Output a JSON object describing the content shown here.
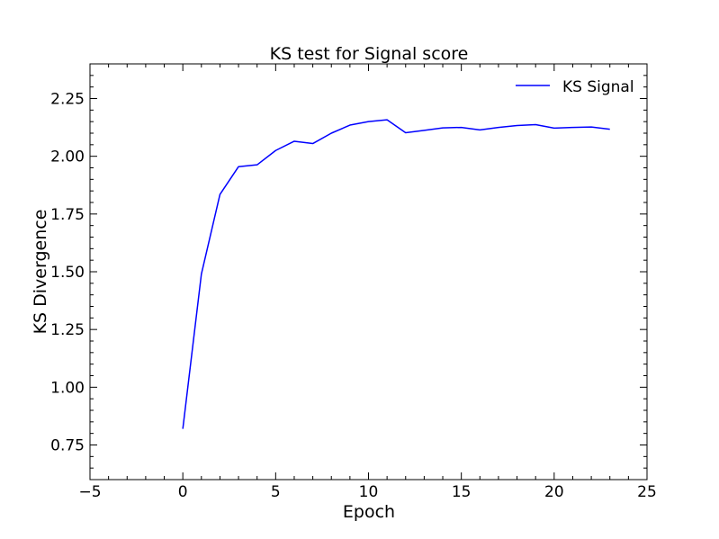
{
  "chart_data": {
    "type": "line",
    "title": "KS test for Signal score",
    "xlabel": "Epoch",
    "ylabel": "KS Divergence",
    "xlim": [
      -5,
      25
    ],
    "ylim": [
      0.6,
      2.4
    ],
    "xticks": [
      -5,
      0,
      5,
      10,
      15,
      20,
      25
    ],
    "xtick_labels": [
      "−5",
      "0",
      "5",
      "10",
      "15",
      "20",
      "25"
    ],
    "yticks": [
      0.75,
      1.0,
      1.25,
      1.5,
      1.75,
      2.0,
      2.25
    ],
    "ytick_labels": [
      "0.75",
      "1.00",
      "1.25",
      "1.50",
      "1.75",
      "2.00",
      "2.25"
    ],
    "grid": false,
    "legend_position": "top-right",
    "series": [
      {
        "name": "KS Signal",
        "color": "#0000ff",
        "x": [
          0,
          1,
          2,
          3,
          4,
          5,
          6,
          7,
          8,
          9,
          10,
          11,
          12,
          13,
          14,
          15,
          16,
          17,
          18,
          19,
          20,
          21,
          22,
          23
        ],
        "y": [
          0.82,
          1.49,
          1.835,
          1.955,
          1.963,
          2.025,
          2.065,
          2.055,
          2.1,
          2.135,
          2.15,
          2.158,
          2.102,
          2.112,
          2.123,
          2.125,
          2.114,
          2.125,
          2.133,
          2.137,
          2.122,
          2.125,
          2.127,
          2.117
        ]
      }
    ]
  }
}
